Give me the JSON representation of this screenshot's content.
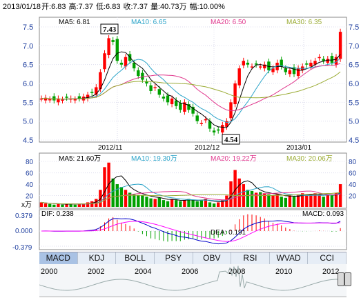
{
  "header": {
    "date": "2013/01/18",
    "open": "开:6.83",
    "high": "高:7.37",
    "low": "低:6.83",
    "close": "收:7.37",
    "volume": "量:40.73万",
    "change": "幅:10.00%"
  },
  "price_panel": {
    "ma5": "MA5: 6.81",
    "ma10": "MA10: 6.65",
    "ma20": "MA20: 6.50",
    "ma30": "MA30: 6.35",
    "y_ticks": [
      "7.5",
      "7.0",
      "6.5",
      "6.0",
      "5.5",
      "5.0",
      "4.5"
    ],
    "x_ticks": [
      "2012/11",
      "2012/12",
      "2013/01"
    ],
    "high_label": "7.43",
    "low_label": "4.54"
  },
  "volume_panel": {
    "ma5": "MA5: 21.60万",
    "ma10": "MA10: 19.30万",
    "ma20": "MA20: 19.22万",
    "ma30": "MA30: 20.06万",
    "y_ticks": [
      "80",
      "60",
      "40",
      "20"
    ],
    "unit": "x万"
  },
  "macd_panel": {
    "dif": "DIF: 0.238",
    "dea": "DEA: 0.191",
    "macd": "MACD: 0.093",
    "y_ticks": [
      "0.379",
      "0.000",
      "-0.379"
    ]
  },
  "tabs": [
    "MACD",
    "KDJ",
    "BOLL",
    "PSY",
    "OBV",
    "RSI",
    "WVAD",
    "CCI"
  ],
  "active_tab": "MACD",
  "timeline_years": [
    "2000",
    "2002",
    "2004",
    "2006",
    "2008",
    "2010",
    "2012"
  ],
  "colors": {
    "up": "#ff0000",
    "down": "#00a000",
    "ma5": "#000000",
    "ma10": "#2aa3c8",
    "ma20": "#e0368c",
    "ma30": "#9aab33",
    "dif": "#0000cc",
    "dea": "#ff00ff"
  }
}
